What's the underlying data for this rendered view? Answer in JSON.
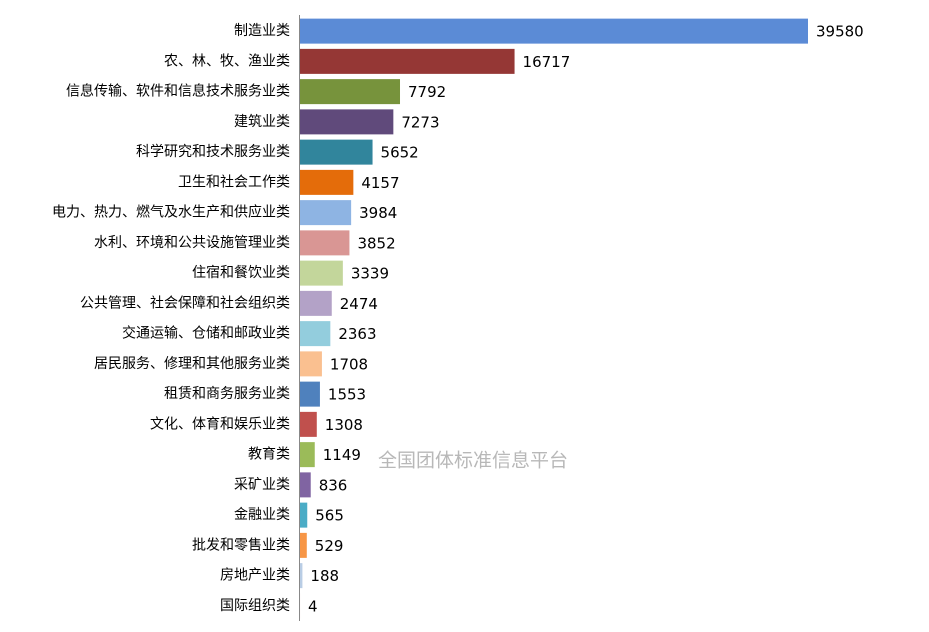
{
  "chart_data": {
    "type": "bar",
    "orientation": "horizontal",
    "categories": [
      "制造业类",
      "农、林、牧、渔业类",
      "信息传输、软件和信息技术服务业类",
      "建筑业类",
      "科学研究和技术服务业类",
      "卫生和社会工作类",
      "电力、热力、燃气及水生产和供应业类",
      "水利、环境和公共设施管理业类",
      "住宿和餐饮业类",
      "公共管理、社会保障和社会组织类",
      "交通运输、仓储和邮政业类",
      "居民服务、修理和其他服务业类",
      "租赁和商务服务业类",
      "文化、体育和娱乐业类",
      "教育类",
      "采矿业类",
      "金融业类",
      "批发和零售业类",
      "房地产业类",
      "国际组织类"
    ],
    "values": [
      39580,
      16717,
      7792,
      7273,
      5652,
      4157,
      3984,
      3852,
      3339,
      2474,
      2363,
      1708,
      1553,
      1308,
      1149,
      836,
      565,
      529,
      188,
      4
    ],
    "colors": [
      "#5b8bd6",
      "#953735",
      "#77933c",
      "#604a7b",
      "#31859c",
      "#e46c0a",
      "#8eb4e3",
      "#d99694",
      "#c3d69b",
      "#b3a2c7",
      "#93cddd",
      "#fac090",
      "#4f81bd",
      "#c0504d",
      "#9bbb59",
      "#8064a2",
      "#4bacc6",
      "#f79646",
      "#b9cde5",
      "#e6b9b8"
    ],
    "watermark": "全国团体标准信息平台"
  }
}
